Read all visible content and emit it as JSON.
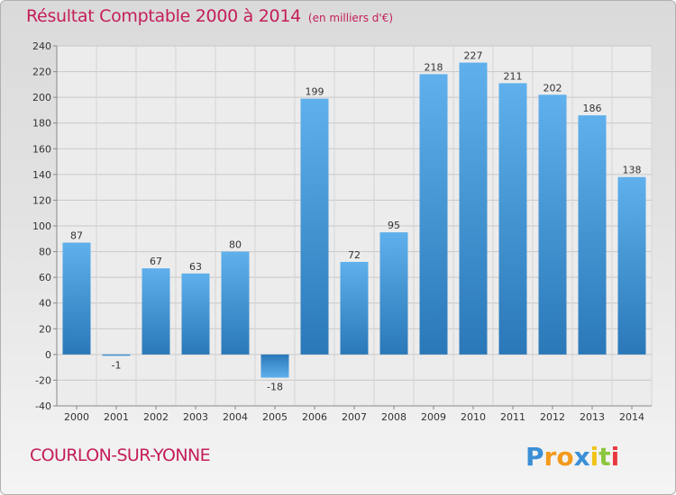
{
  "title": "Résultat Comptable 2000 à 2014",
  "subtitle": "(en milliers d'€)",
  "location": "COURLON-SUR-YONNE",
  "brand": {
    "letters": [
      "P",
      "r",
      "o",
      "x",
      "i",
      "t",
      "i"
    ],
    "colors": [
      "#3a8fd6",
      "#f39a1b",
      "#f39a1b",
      "#3a8fd6",
      "#f0c419",
      "#8cc63e",
      "#e8383d"
    ]
  },
  "colors": {
    "title": "#c41d5a",
    "bar_light": "#5fb0ec",
    "bar_dark": "#2a78b8"
  },
  "chart_data": {
    "type": "bar",
    "title": "Résultat Comptable 2000 à 2014",
    "ylabel": "en milliers d'€",
    "xlabel": "",
    "categories": [
      "2000",
      "2001",
      "2002",
      "2003",
      "2004",
      "2005",
      "2006",
      "2007",
      "2008",
      "2009",
      "2010",
      "2011",
      "2012",
      "2013",
      "2014"
    ],
    "values": [
      87,
      -1,
      67,
      63,
      80,
      -18,
      199,
      72,
      95,
      218,
      227,
      211,
      202,
      186,
      138
    ],
    "ylim": [
      -40,
      240
    ],
    "yticks": [
      -40,
      -20,
      0,
      20,
      40,
      60,
      80,
      100,
      120,
      140,
      160,
      180,
      200,
      220,
      240
    ],
    "grid": true
  }
}
